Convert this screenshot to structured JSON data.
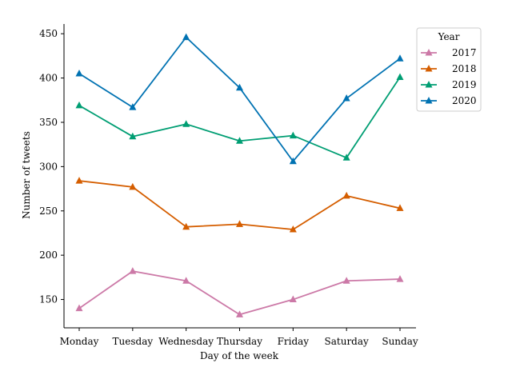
{
  "chart_data": {
    "type": "line",
    "title": "",
    "xlabel": "Day of the week",
    "ylabel": "Number of tweets",
    "categories": [
      "Monday",
      "Tuesday",
      "Wednesday",
      "Thursday",
      "Friday",
      "Saturday",
      "Sunday"
    ],
    "ylim": [
      118,
      461
    ],
    "yticks": [
      150,
      200,
      250,
      300,
      350,
      400,
      450
    ],
    "grid": false,
    "marker": "triangle",
    "legend": {
      "title": "Year",
      "placement": "top-right"
    },
    "series": [
      {
        "name": "2017",
        "color": "#cc79a7",
        "values": [
          140,
          182,
          171,
          133,
          150,
          171,
          173
        ]
      },
      {
        "name": "2018",
        "color": "#d55e00",
        "values": [
          284,
          277,
          232,
          235,
          229,
          267,
          253
        ]
      },
      {
        "name": "2019",
        "color": "#009e73",
        "values": [
          369,
          334,
          348,
          329,
          335,
          310,
          401
        ]
      },
      {
        "name": "2020",
        "color": "#0072b2",
        "values": [
          405,
          367,
          446,
          389,
          306,
          377,
          422
        ]
      }
    ]
  }
}
